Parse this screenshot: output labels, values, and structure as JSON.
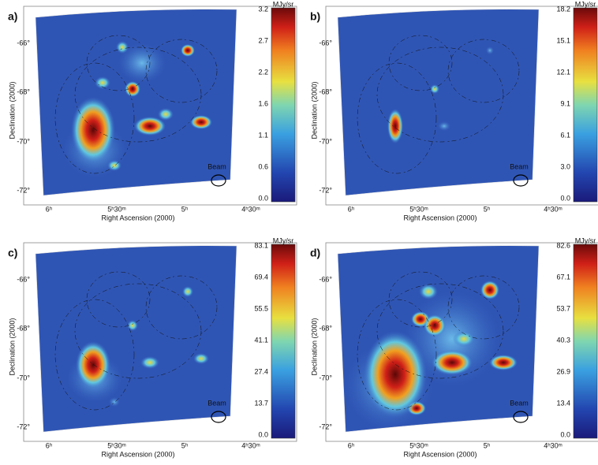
{
  "panels": [
    {
      "label": "a)",
      "unit": "MJy/sr",
      "colorbar_ticks": [
        "3.2",
        "2.7",
        "2.2",
        "1.6",
        "1.1",
        "0.6",
        "0.0"
      ],
      "x_ticks": [
        "6ʰ",
        "5ʰ30ᵐ",
        "5ʰ",
        "4ʰ30ᵐ"
      ],
      "y_ticks": [
        "-66°",
        "-68°",
        "-70°",
        "-72°"
      ],
      "x_label": "Right Ascension (2000)",
      "y_label": "Declination (2000)",
      "beam": "Beam"
    },
    {
      "label": "b)",
      "unit": "MJy/sr",
      "colorbar_ticks": [
        "18.2",
        "15.1",
        "12.1",
        "9.1",
        "6.1",
        "3.0",
        "0.0"
      ],
      "x_ticks": [
        "6ʰ",
        "5ʰ30ᵐ",
        "5ʰ",
        "4ʰ30ᵐ"
      ],
      "y_ticks": [
        "-66°",
        "-68°",
        "-70°",
        "-72°"
      ],
      "x_label": "Right Ascension (2000)",
      "y_label": "Declination (2000)",
      "beam": "Beam"
    },
    {
      "label": "c)",
      "unit": "MJy/sr",
      "colorbar_ticks": [
        "83.1",
        "69.4",
        "55.5",
        "41.1",
        "27.4",
        "13.7",
        "0.0"
      ],
      "x_ticks": [
        "6ʰ",
        "5ʰ30ᵐ",
        "5ʰ",
        "4ʰ30ᵐ"
      ],
      "y_ticks": [
        "-66°",
        "-68°",
        "-70°",
        "-72°"
      ],
      "x_label": "Right Ascension (2000)",
      "y_label": "Declination (2000)",
      "beam": "Beam"
    },
    {
      "label": "d)",
      "unit": "MJy/sr",
      "colorbar_ticks": [
        "82.6",
        "67.1",
        "53.7",
        "40.3",
        "26.9",
        "13.4",
        "0.0"
      ],
      "x_ticks": [
        "6ʰ",
        "5ʰ30ᵐ",
        "5ʰ",
        "4ʰ30ᵐ"
      ],
      "y_ticks": [
        "-66°",
        "-68°",
        "-70°",
        "-72°"
      ],
      "x_label": "Right Ascension (2000)",
      "y_label": "Declination (2000)",
      "beam": "Beam"
    }
  ]
}
